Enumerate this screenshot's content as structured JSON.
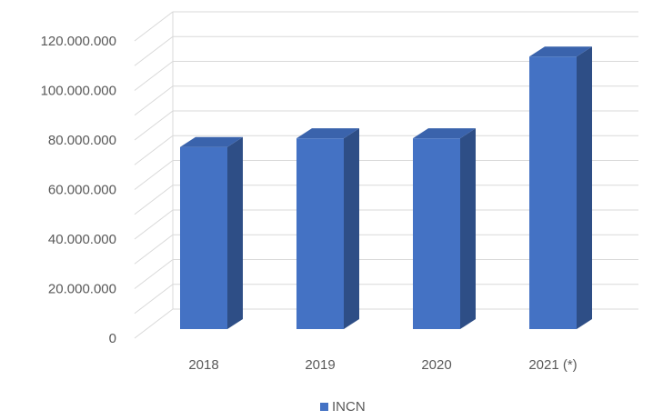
{
  "chart_data": {
    "type": "bar",
    "style": "3d-column",
    "categories": [
      "2018",
      "2019",
      "2020",
      "2021 (*)"
    ],
    "series": [
      {
        "name": "INCN",
        "values": [
          73500000,
          77000000,
          77000000,
          110000000
        ]
      }
    ],
    "ylim": [
      0,
      120000000
    ],
    "yticks": [
      0,
      20000000,
      40000000,
      60000000,
      80000000,
      100000000,
      120000000
    ],
    "ytick_labels": [
      "0",
      "20.000.000",
      "40.000.000",
      "60.000.000",
      "80.000.000",
      "100.000.000",
      "120.000.000"
    ],
    "grid": true,
    "minor_grid": true,
    "legend": "bottom",
    "title": "",
    "xlabel": "",
    "ylabel": ""
  },
  "colors": {
    "bar_front": "#4472C4",
    "bar_side": "#2E4E86",
    "bar_top": "#3A63AC",
    "grid": "#D9D9D9",
    "text": "#595959"
  }
}
